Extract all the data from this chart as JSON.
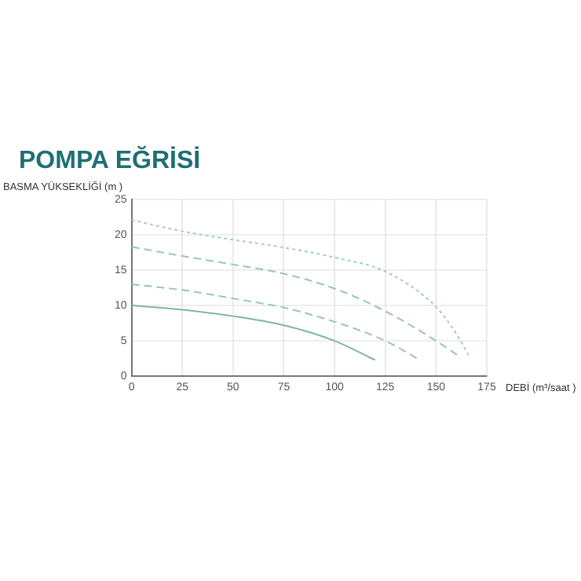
{
  "chart_data": {
    "type": "line",
    "title": "POMPA EĞRİSİ",
    "xlabel": "DEBİ (m³/saat )",
    "ylabel": "BASMA YÜKSEKLİĞİ (m )",
    "xlim": [
      0,
      175
    ],
    "xticks": [
      0,
      25,
      50,
      75,
      100,
      125,
      150,
      175
    ],
    "ylim": [
      0,
      25
    ],
    "yticks": [
      0,
      5,
      10,
      15,
      20,
      25
    ],
    "grid": true,
    "marker": "none",
    "series": [
      {
        "color": "#7fb5a8",
        "line_style": "solid",
        "x": [
          0,
          25,
          50,
          75,
          100,
          120
        ],
        "values": [
          10,
          9.4,
          8.5,
          7.2,
          5,
          2.3
        ]
      },
      {
        "color": "#9cc4bb",
        "line_style": "dashed",
        "x": [
          0,
          25,
          50,
          75,
          100,
          125,
          142
        ],
        "values": [
          13,
          12.2,
          11,
          9.7,
          7.7,
          5,
          2.3
        ]
      },
      {
        "color": "#9cc4bb",
        "line_style": "dashed",
        "x": [
          0,
          25,
          50,
          75,
          100,
          125,
          150,
          162
        ],
        "values": [
          18.3,
          17,
          15.8,
          14.5,
          12.4,
          9.2,
          5,
          2.7
        ]
      },
      {
        "color": "#a9ccc4",
        "line_style": "dotted",
        "x": [
          0,
          25,
          50,
          75,
          100,
          125,
          150,
          160,
          166
        ],
        "values": [
          22.1,
          20.5,
          19.3,
          18.2,
          16.8,
          14.8,
          9.8,
          6,
          3
        ]
      }
    ]
  }
}
